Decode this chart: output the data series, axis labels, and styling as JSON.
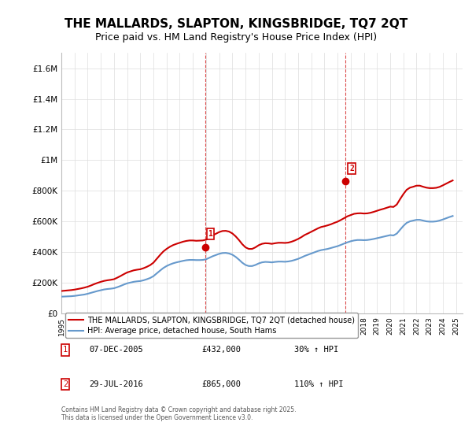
{
  "title": "THE MALLARDS, SLAPTON, KINGSBRIDGE, TQ7 2QT",
  "subtitle": "Price paid vs. HM Land Registry's House Price Index (HPI)",
  "title_fontsize": 11,
  "subtitle_fontsize": 9,
  "ylabel_vals": [
    0,
    200000,
    400000,
    600000,
    800000,
    1000000,
    1200000,
    1400000,
    1600000
  ],
  "ylabel_labels": [
    "£0",
    "£200K",
    "£400K",
    "£600K",
    "£800K",
    "£1M",
    "£1.2M",
    "£1.4M",
    "£1.6M"
  ],
  "ylim": [
    0,
    1700000
  ],
  "xlim_start": 1995.0,
  "xlim_end": 2025.5,
  "line1_color": "#cc0000",
  "line2_color": "#6699cc",
  "line1_label": "THE MALLARDS, SLAPTON, KINGSBRIDGE, TQ7 2QT (detached house)",
  "line2_label": "HPI: Average price, detached house, South Hams",
  "sale1_x": 2005.93,
  "sale1_y": 432000,
  "sale1_label": "1",
  "sale2_x": 2016.58,
  "sale2_y": 865000,
  "sale2_label": "2",
  "vline1_x": 2005.93,
  "vline2_x": 2016.58,
  "footnote": "Contains HM Land Registry data © Crown copyright and database right 2025.\nThis data is licensed under the Open Government Licence v3.0.",
  "table_entries": [
    {
      "num": "1",
      "date": "07-DEC-2005",
      "price": "£432,000",
      "hpi": "30% ↑ HPI"
    },
    {
      "num": "2",
      "date": "29-JUL-2016",
      "price": "£865,000",
      "hpi": "110% ↑ HPI"
    }
  ],
  "hpi_data": {
    "years": [
      1995.0,
      1995.25,
      1995.5,
      1995.75,
      1996.0,
      1996.25,
      1996.5,
      1996.75,
      1997.0,
      1997.25,
      1997.5,
      1997.75,
      1998.0,
      1998.25,
      1998.5,
      1998.75,
      1999.0,
      1999.25,
      1999.5,
      1999.75,
      2000.0,
      2000.25,
      2000.5,
      2000.75,
      2001.0,
      2001.25,
      2001.5,
      2001.75,
      2002.0,
      2002.25,
      2002.5,
      2002.75,
      2003.0,
      2003.25,
      2003.5,
      2003.75,
      2004.0,
      2004.25,
      2004.5,
      2004.75,
      2005.0,
      2005.25,
      2005.5,
      2005.75,
      2006.0,
      2006.25,
      2006.5,
      2006.75,
      2007.0,
      2007.25,
      2007.5,
      2007.75,
      2008.0,
      2008.25,
      2008.5,
      2008.75,
      2009.0,
      2009.25,
      2009.5,
      2009.75,
      2010.0,
      2010.25,
      2010.5,
      2010.75,
      2011.0,
      2011.25,
      2011.5,
      2011.75,
      2012.0,
      2012.25,
      2012.5,
      2012.75,
      2013.0,
      2013.25,
      2013.5,
      2013.75,
      2014.0,
      2014.25,
      2014.5,
      2014.75,
      2015.0,
      2015.25,
      2015.5,
      2015.75,
      2016.0,
      2016.25,
      2016.5,
      2016.75,
      2017.0,
      2017.25,
      2017.5,
      2017.75,
      2018.0,
      2018.25,
      2018.5,
      2018.75,
      2019.0,
      2019.25,
      2019.5,
      2019.75,
      2020.0,
      2020.25,
      2020.5,
      2020.75,
      2021.0,
      2021.25,
      2021.5,
      2021.75,
      2022.0,
      2022.25,
      2022.5,
      2022.75,
      2023.0,
      2023.25,
      2023.5,
      2023.75,
      2024.0,
      2024.25,
      2024.5,
      2024.75
    ],
    "values": [
      108000,
      109000,
      110000,
      111000,
      113000,
      116000,
      119000,
      122000,
      127000,
      133000,
      139000,
      145000,
      150000,
      155000,
      158000,
      160000,
      163000,
      170000,
      178000,
      187000,
      195000,
      200000,
      205000,
      208000,
      210000,
      215000,
      222000,
      230000,
      242000,
      260000,
      278000,
      295000,
      308000,
      318000,
      326000,
      332000,
      337000,
      342000,
      346000,
      348000,
      348000,
      347000,
      347000,
      348000,
      352000,
      362000,
      372000,
      380000,
      388000,
      393000,
      394000,
      390000,
      382000,
      368000,
      350000,
      330000,
      315000,
      308000,
      308000,
      315000,
      325000,
      332000,
      335000,
      334000,
      332000,
      335000,
      337000,
      337000,
      336000,
      338000,
      342000,
      348000,
      355000,
      364000,
      374000,
      382000,
      390000,
      398000,
      406000,
      412000,
      416000,
      420000,
      426000,
      432000,
      438000,
      446000,
      455000,
      463000,
      470000,
      475000,
      478000,
      478000,
      477000,
      478000,
      481000,
      485000,
      490000,
      495000,
      500000,
      505000,
      510000,
      508000,
      520000,
      545000,
      570000,
      590000,
      600000,
      605000,
      610000,
      610000,
      605000,
      600000,
      598000,
      598000,
      600000,
      605000,
      612000,
      620000,
      628000,
      635000
    ]
  },
  "property_data": {
    "years": [
      1995.0,
      1995.25,
      1995.5,
      1995.75,
      1996.0,
      1996.25,
      1996.5,
      1996.75,
      1997.0,
      1997.25,
      1997.5,
      1997.75,
      1998.0,
      1998.25,
      1998.5,
      1998.75,
      1999.0,
      1999.25,
      1999.5,
      1999.75,
      2000.0,
      2000.25,
      2000.5,
      2000.75,
      2001.0,
      2001.25,
      2001.5,
      2001.75,
      2002.0,
      2002.25,
      2002.5,
      2002.75,
      2003.0,
      2003.25,
      2003.5,
      2003.75,
      2004.0,
      2004.25,
      2004.5,
      2004.75,
      2005.0,
      2005.25,
      2005.5,
      2005.75,
      2006.0,
      2006.25,
      2006.5,
      2006.75,
      2007.0,
      2007.25,
      2007.5,
      2007.75,
      2008.0,
      2008.25,
      2008.5,
      2008.75,
      2009.0,
      2009.25,
      2009.5,
      2009.75,
      2010.0,
      2010.25,
      2010.5,
      2010.75,
      2011.0,
      2011.25,
      2011.5,
      2011.75,
      2012.0,
      2012.25,
      2012.5,
      2012.75,
      2013.0,
      2013.25,
      2013.5,
      2013.75,
      2014.0,
      2014.25,
      2014.5,
      2014.75,
      2015.0,
      2015.25,
      2015.5,
      2015.75,
      2016.0,
      2016.25,
      2016.5,
      2016.75,
      2017.0,
      2017.25,
      2017.5,
      2017.75,
      2018.0,
      2018.25,
      2018.5,
      2018.75,
      2019.0,
      2019.25,
      2019.5,
      2019.75,
      2020.0,
      2020.25,
      2020.5,
      2020.75,
      2021.0,
      2021.25,
      2021.5,
      2021.75,
      2022.0,
      2022.25,
      2022.5,
      2022.75,
      2023.0,
      2023.25,
      2023.5,
      2023.75,
      2024.0,
      2024.25,
      2024.5,
      2024.75
    ],
    "values": [
      145000,
      147000,
      149000,
      151000,
      154000,
      158000,
      162000,
      167000,
      173000,
      181000,
      190000,
      198000,
      205000,
      211000,
      215000,
      218000,
      222000,
      232000,
      243000,
      255000,
      266000,
      273000,
      280000,
      284000,
      287000,
      294000,
      303000,
      314000,
      330000,
      355000,
      380000,
      403000,
      420000,
      434000,
      445000,
      453000,
      460000,
      467000,
      472000,
      475000,
      475000,
      473000,
      474000,
      475000,
      480000,
      494000,
      508000,
      519000,
      530000,
      537000,
      538000,
      533000,
      521000,
      502000,
      478000,
      451000,
      430000,
      420000,
      420000,
      430000,
      444000,
      453000,
      457000,
      456000,
      453000,
      457000,
      460000,
      460000,
      459000,
      461000,
      467000,
      475000,
      485000,
      497000,
      511000,
      521000,
      532000,
      543000,
      554000,
      563000,
      568000,
      574000,
      581000,
      590000,
      598000,
      609000,
      621000,
      633000,
      641000,
      649000,
      652000,
      653000,
      651000,
      652000,
      656000,
      662000,
      669000,
      676000,
      682000,
      689000,
      696000,
      694000,
      710000,
      745000,
      778000,
      806000,
      820000,
      826000,
      833000,
      833000,
      826000,
      820000,
      817000,
      817000,
      819000,
      825000,
      835000,
      846000,
      857000,
      867000
    ]
  }
}
